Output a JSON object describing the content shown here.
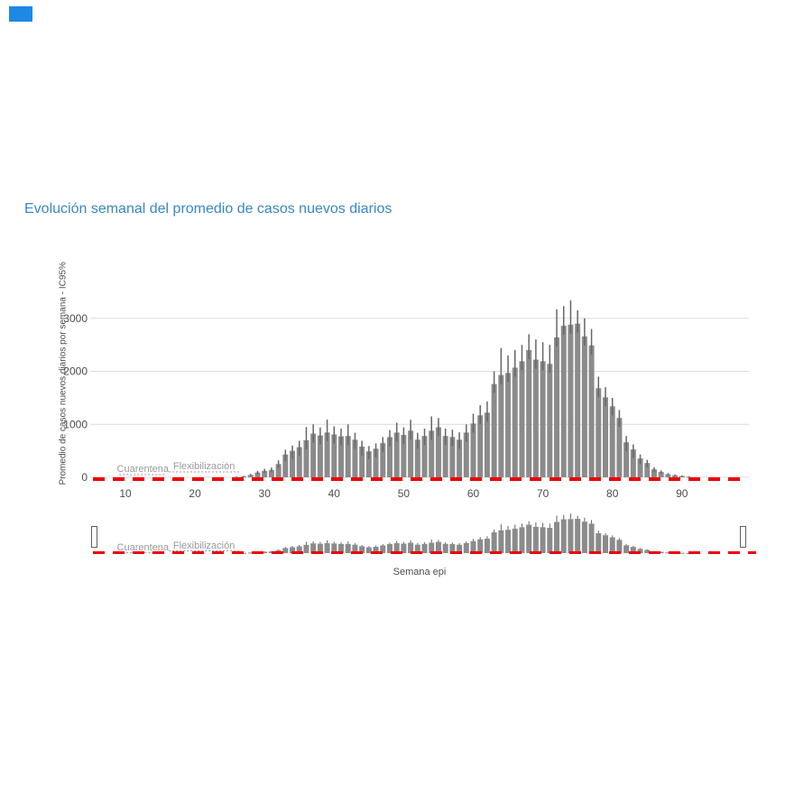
{
  "header": {
    "title": "Evolución semanal del promedio de casos nuevos diarios",
    "title_color": "#3a87c5",
    "corner_marker_color": "#1e88e5"
  },
  "chart_data": {
    "type": "bar",
    "title": "Evolución semanal del promedio de casos nuevos diarios",
    "xlabel": "Semana epi",
    "ylabel": "Promedio de casos nuevos diarios por semana - IC95%",
    "x_ticks": [
      10,
      20,
      30,
      40,
      50,
      60,
      70,
      80,
      90
    ],
    "y_ticks": [
      0,
      1000,
      2000,
      3000
    ],
    "xlim": [
      5,
      99
    ],
    "ylim": [
      0,
      3400
    ],
    "grid": "horizontal-only",
    "legend": "none",
    "colors": {
      "bar": "#8b8b8b",
      "error_bar": "#666666",
      "threshold_line": "#ee0000",
      "gridline": "#dcdcdc",
      "tick_label": "#4d4d4d",
      "annotation": "#9a9a9a"
    },
    "threshold_line": {
      "y": 0,
      "style": "dashed",
      "color": "#ee0000"
    },
    "annotations": [
      {
        "label": "Cuarentena",
        "week": 12.5
      },
      {
        "label": "Flexibilización",
        "week": 21.3
      }
    ],
    "series": [
      {
        "name": "Promedio de casos nuevos diarios por semana",
        "points_format": [
          "week",
          "avg",
          "ci_high"
        ],
        "points": [
          [
            26,
            10,
            15
          ],
          [
            27,
            20,
            30
          ],
          [
            28,
            45,
            65
          ],
          [
            29,
            90,
            120
          ],
          [
            30,
            120,
            160
          ],
          [
            31,
            140,
            185
          ],
          [
            32,
            250,
            320
          ],
          [
            33,
            430,
            520
          ],
          [
            34,
            500,
            600
          ],
          [
            35,
            570,
            690
          ],
          [
            36,
            700,
            950
          ],
          [
            37,
            825,
            1000
          ],
          [
            38,
            790,
            940
          ],
          [
            39,
            845,
            1090
          ],
          [
            40,
            810,
            960
          ],
          [
            41,
            775,
            920
          ],
          [
            42,
            780,
            1000
          ],
          [
            43,
            710,
            840
          ],
          [
            44,
            580,
            690
          ],
          [
            45,
            490,
            590
          ],
          [
            46,
            540,
            640
          ],
          [
            47,
            645,
            760
          ],
          [
            48,
            760,
            890
          ],
          [
            49,
            845,
            1030
          ],
          [
            50,
            800,
            940
          ],
          [
            51,
            880,
            1085
          ],
          [
            52,
            710,
            840
          ],
          [
            53,
            780,
            920
          ],
          [
            54,
            880,
            1150
          ],
          [
            55,
            945,
            1120
          ],
          [
            56,
            780,
            920
          ],
          [
            57,
            760,
            900
          ],
          [
            58,
            710,
            850
          ],
          [
            59,
            845,
            1000
          ],
          [
            60,
            1015,
            1200
          ],
          [
            61,
            1170,
            1360
          ],
          [
            62,
            1220,
            1430
          ],
          [
            63,
            1760,
            2000
          ],
          [
            64,
            1930,
            2440
          ],
          [
            65,
            1970,
            2300
          ],
          [
            66,
            2070,
            2400
          ],
          [
            67,
            2190,
            2500
          ],
          [
            68,
            2400,
            2700
          ],
          [
            69,
            2220,
            2600
          ],
          [
            70,
            2190,
            2550
          ],
          [
            71,
            2140,
            2500
          ],
          [
            72,
            2640,
            3170
          ],
          [
            73,
            2860,
            3230
          ],
          [
            74,
            2880,
            3340
          ],
          [
            75,
            2900,
            3150
          ],
          [
            76,
            2660,
            3000
          ],
          [
            77,
            2490,
            2800
          ],
          [
            78,
            1680,
            1900
          ],
          [
            79,
            1510,
            1700
          ],
          [
            80,
            1340,
            1500
          ],
          [
            81,
            1120,
            1270
          ],
          [
            82,
            660,
            780
          ],
          [
            83,
            525,
            620
          ],
          [
            84,
            355,
            430
          ],
          [
            85,
            270,
            330
          ],
          [
            86,
            150,
            190
          ],
          [
            87,
            100,
            130
          ],
          [
            88,
            60,
            80
          ],
          [
            89,
            40,
            55
          ],
          [
            90,
            25,
            35
          ],
          [
            91,
            12,
            18
          ]
        ]
      }
    ],
    "range_selector": {
      "visible": true,
      "selected_range": "full",
      "annotations": [
        {
          "label": "Cuarentena",
          "week": 12.5
        },
        {
          "label": "Flexibilización",
          "week": 21.3
        }
      ]
    }
  }
}
